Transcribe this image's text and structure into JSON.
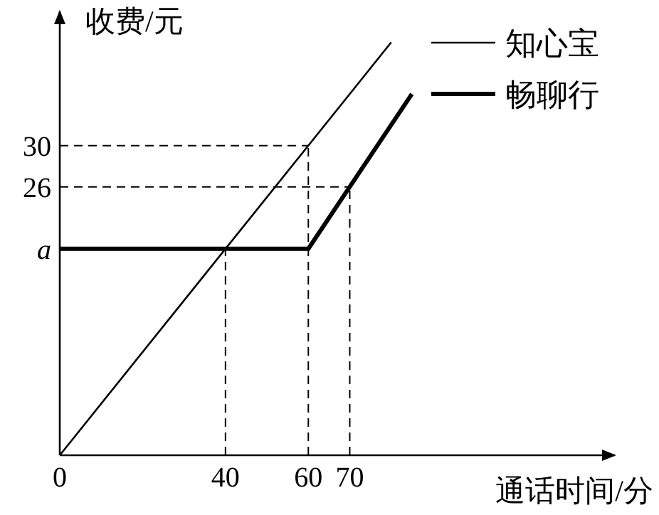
{
  "chart_data": {
    "type": "line",
    "xlabel": "通话时间/分",
    "ylabel": "收费/元",
    "xlim": [
      0,
      134
    ],
    "ylim": [
      0,
      43
    ],
    "xticks": [
      0,
      40,
      60,
      70
    ],
    "yticks": [
      {
        "value": 20,
        "label": "a"
      },
      26,
      30
    ],
    "series": [
      {
        "name": "知心宝",
        "color": "#000000",
        "x": [
          0,
          80
        ],
        "values": [
          0,
          40
        ]
      },
      {
        "name": "畅聊行",
        "color": "#000000",
        "x": [
          0,
          60,
          70,
          85
        ],
        "values": [
          20,
          20,
          26,
          35
        ]
      }
    ],
    "ref_lines": [
      {
        "axis": "x",
        "value": 40,
        "line_style": "dashed"
      },
      {
        "axis": "x",
        "value": 60,
        "line_style": "dashed"
      },
      {
        "axis": "x",
        "value": 70,
        "line_style": "dashed"
      },
      {
        "axis": "y",
        "value": 30,
        "line_style": "dashed"
      },
      {
        "axis": "y",
        "value": 26,
        "line_style": "dashed"
      }
    ],
    "legend": "top right",
    "grid": false
  }
}
